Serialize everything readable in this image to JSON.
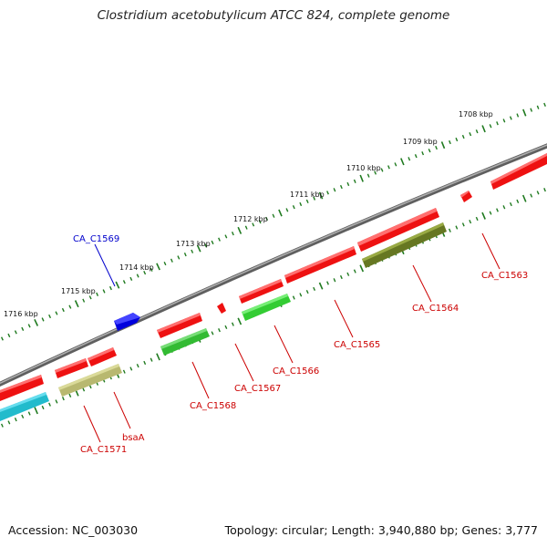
{
  "title": "Clostridium acetobutylicum ATCC 824, complete genome",
  "footer": {
    "accession": "Accession: NC_003030",
    "summary": "Topology: circular; Length: 3,940,880 bp; Genes: 3,777"
  },
  "ruler": {
    "labels": [
      "1708 kbp",
      "1709 kbp",
      "1710 kbp",
      "1711 kbp",
      "1712 kbp",
      "1713 kbp",
      "1714 kbp",
      "1715 kbp",
      "1716 kbp"
    ],
    "tick_color": "#1f7a1f"
  },
  "colors": {
    "red": "#ee1111",
    "blue": "#0000dd",
    "green": "#33cc33",
    "olive": "#667722",
    "khaki": "#b8b870",
    "cyan": "#22bbcc",
    "backbone": "#808080"
  },
  "genes": [
    {
      "id": "CA_C1563",
      "label": "CA_C1563",
      "color": "#cc0000"
    },
    {
      "id": "CA_C1564",
      "label": "CA_C1564",
      "color": "#cc0000"
    },
    {
      "id": "CA_C1565",
      "label": "CA_C1565",
      "color": "#cc0000"
    },
    {
      "id": "CA_C1566",
      "label": "CA_C1566",
      "color": "#cc0000"
    },
    {
      "id": "CA_C1567",
      "label": "CA_C1567",
      "color": "#cc0000"
    },
    {
      "id": "CA_C1568",
      "label": "CA_C1568",
      "color": "#cc0000"
    },
    {
      "id": "CA_C1569",
      "label": "CA_C1569",
      "color": "#0000cc"
    },
    {
      "id": "bsaA",
      "label": "bsaA",
      "color": "#cc0000"
    },
    {
      "id": "CA_C1571",
      "label": "CA_C1571",
      "color": "#cc0000"
    }
  ]
}
